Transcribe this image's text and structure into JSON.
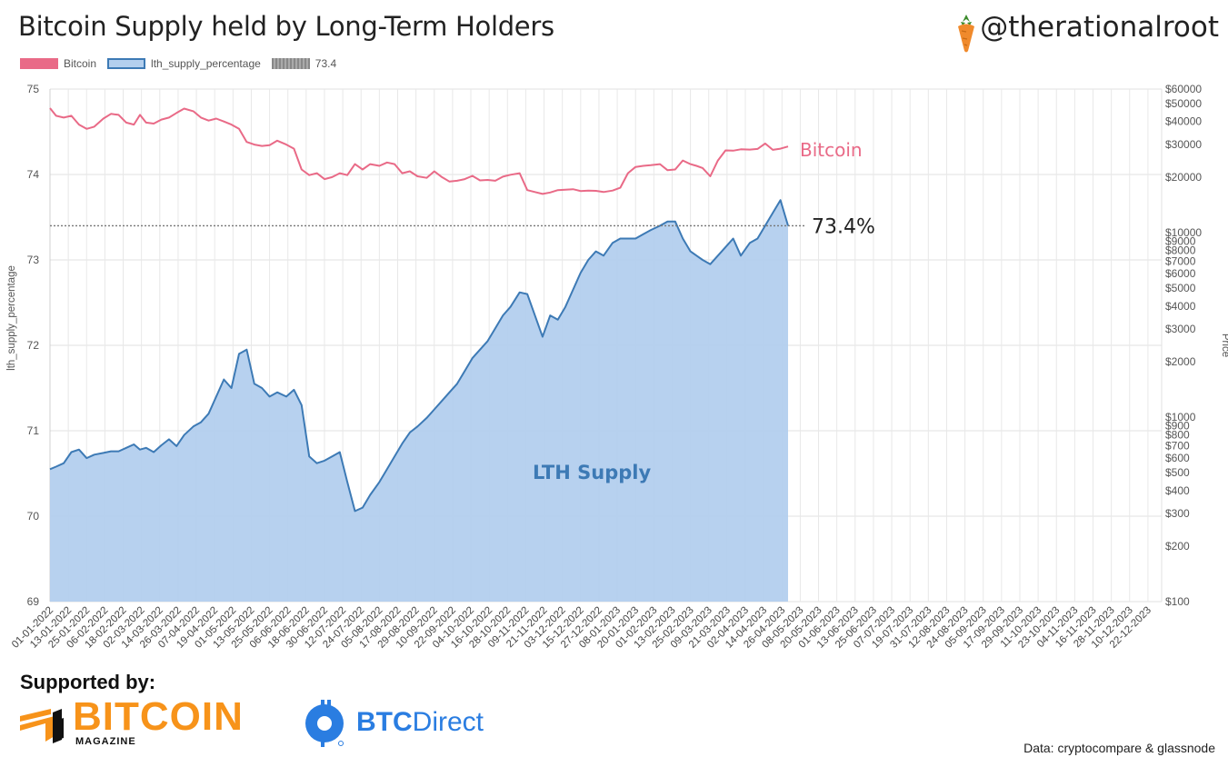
{
  "header": {
    "title": "Bitcoin Supply held by Long-Term Holders",
    "handle": "@therationalroot"
  },
  "legend": [
    {
      "label": "Bitcoin",
      "color": "#e96a87"
    },
    {
      "label": "lth_supply_percentage",
      "color": "#3d7ab5"
    },
    {
      "label": "73.4",
      "color": "#888888"
    }
  ],
  "footer": {
    "supported_by": "Supported by:",
    "sponsor1_name": "BITCOIN",
    "sponsor1_sub": "MAGAZINE",
    "sponsor2_name_a": "BTC",
    "sponsor2_name_b": "Direct",
    "source": "Data: cryptocompare & glassnode"
  },
  "chart_data": {
    "type": "line",
    "title": "Bitcoin Supply held by Long-Term Holders",
    "y_left_label": "lth_supply_percentage",
    "y_left_range": [
      69,
      75
    ],
    "y_left_ticks": [
      "69",
      "70",
      "71",
      "72",
      "73",
      "74",
      "75"
    ],
    "y_right_label": "Price",
    "y_right_scale": "log",
    "y_right_range": [
      100,
      60000
    ],
    "y_right_ticks": [
      {
        "v": 100,
        "label": "$100"
      },
      {
        "v": 200,
        "label": "$200"
      },
      {
        "v": 300,
        "label": "$300"
      },
      {
        "v": 400,
        "label": "$400"
      },
      {
        "v": 500,
        "label": "$500"
      },
      {
        "v": 600,
        "label": "$600"
      },
      {
        "v": 700,
        "label": "$700"
      },
      {
        "v": 800,
        "label": "$800"
      },
      {
        "v": 900,
        "label": "$900"
      },
      {
        "v": 1000,
        "label": "$1000"
      },
      {
        "v": 2000,
        "label": "$2000"
      },
      {
        "v": 3000,
        "label": "$3000"
      },
      {
        "v": 4000,
        "label": "$4000"
      },
      {
        "v": 5000,
        "label": "$5000"
      },
      {
        "v": 6000,
        "label": "$6000"
      },
      {
        "v": 7000,
        "label": "$7000"
      },
      {
        "v": 8000,
        "label": "$8000"
      },
      {
        "v": 9000,
        "label": "$9000"
      },
      {
        "v": 10000,
        "label": "$10000"
      },
      {
        "v": 20000,
        "label": "$20000"
      },
      {
        "v": 30000,
        "label": "$30000"
      },
      {
        "v": 40000,
        "label": "$40000"
      },
      {
        "v": 50000,
        "label": "$50000"
      },
      {
        "v": 60000,
        "label": "$60000"
      }
    ],
    "x_range": [
      "2022-01-01",
      "2023-12-31"
    ],
    "x_tick_labels": [
      "01-01-2022",
      "13-01-2022",
      "25-01-2022",
      "06-02-2022",
      "18-02-2022",
      "02-03-2022",
      "14-03-2022",
      "26-03-2022",
      "07-04-2022",
      "19-04-2022",
      "01-05-2022",
      "13-05-2022",
      "25-05-2022",
      "06-06-2022",
      "18-06-2022",
      "30-06-2022",
      "12-07-2022",
      "24-07-2022",
      "05-08-2022",
      "17-08-2022",
      "29-08-2022",
      "10-09-2022",
      "22-09-2022",
      "04-10-2022",
      "16-10-2022",
      "28-10-2022",
      "09-11-2022",
      "21-11-2022",
      "03-12-2022",
      "15-12-2022",
      "27-12-2022",
      "08-01-2023",
      "20-01-2023",
      "01-02-2023",
      "13-02-2023",
      "25-02-2023",
      "09-03-2023",
      "21-03-2023",
      "02-04-2023",
      "14-04-2023",
      "26-04-2023",
      "08-05-2023",
      "20-05-2023",
      "01-06-2023",
      "13-06-2023",
      "25-06-2023",
      "07-07-2023",
      "19-07-2023",
      "31-07-2023",
      "12-08-2023",
      "24-08-2023",
      "05-09-2023",
      "17-09-2023",
      "29-09-2023",
      "11-10-2023",
      "23-10-2023",
      "04-11-2023",
      "16-11-2023",
      "28-11-2023",
      "10-12-2023",
      "22-12-2023"
    ],
    "grid": true,
    "reference_line": {
      "value": 73.4,
      "label": "73.4%"
    },
    "series": [
      {
        "name": "lth_supply_percentage",
        "axis": "left",
        "type": "area",
        "annotation": "LTH Supply",
        "color": "#3d7ab5",
        "fill": "#b3cfee",
        "x": [
          "2022-01-01",
          "2022-01-05",
          "2022-01-10",
          "2022-01-15",
          "2022-01-20",
          "2022-01-25",
          "2022-01-30",
          "2022-02-05",
          "2022-02-10",
          "2022-02-15",
          "2022-02-20",
          "2022-02-25",
          "2022-03-01",
          "2022-03-05",
          "2022-03-10",
          "2022-03-15",
          "2022-03-20",
          "2022-03-25",
          "2022-03-30",
          "2022-04-05",
          "2022-04-10",
          "2022-04-15",
          "2022-04-20",
          "2022-04-25",
          "2022-04-30",
          "2022-05-05",
          "2022-05-10",
          "2022-05-15",
          "2022-05-20",
          "2022-05-25",
          "2022-05-30",
          "2022-06-05",
          "2022-06-10",
          "2022-06-15",
          "2022-06-20",
          "2022-06-25",
          "2022-06-30",
          "2022-07-05",
          "2022-07-10",
          "2022-07-15",
          "2022-07-20",
          "2022-07-25",
          "2022-07-30",
          "2022-08-05",
          "2022-08-10",
          "2022-08-15",
          "2022-08-20",
          "2022-08-25",
          "2022-08-30",
          "2022-09-05",
          "2022-09-10",
          "2022-09-15",
          "2022-09-20",
          "2022-09-25",
          "2022-09-30",
          "2022-10-05",
          "2022-10-10",
          "2022-10-15",
          "2022-10-20",
          "2022-10-25",
          "2022-10-30",
          "2022-11-05",
          "2022-11-10",
          "2022-11-15",
          "2022-11-20",
          "2022-11-25",
          "2022-11-30",
          "2022-12-05",
          "2022-12-10",
          "2022-12-15",
          "2022-12-20",
          "2022-12-25",
          "2022-12-30",
          "2023-01-05",
          "2023-01-10",
          "2023-01-15",
          "2023-01-20",
          "2023-01-25",
          "2023-01-30",
          "2023-02-05",
          "2023-02-10",
          "2023-02-15",
          "2023-02-20",
          "2023-02-25",
          "2023-03-01",
          "2023-03-05",
          "2023-03-10",
          "2023-03-15",
          "2023-03-20",
          "2023-03-25",
          "2023-03-30",
          "2023-04-05",
          "2023-04-10",
          "2023-04-15",
          "2023-04-20",
          "2023-04-25",
          "2023-04-30"
        ],
        "values": [
          70.55,
          70.58,
          70.62,
          70.75,
          70.78,
          70.68,
          70.72,
          70.74,
          70.76,
          70.76,
          70.8,
          70.84,
          70.78,
          70.8,
          70.75,
          70.83,
          70.9,
          70.82,
          70.95,
          71.05,
          71.1,
          71.2,
          71.4,
          71.6,
          71.5,
          71.9,
          71.95,
          71.55,
          71.5,
          71.4,
          71.45,
          71.4,
          71.48,
          71.3,
          70.7,
          70.62,
          70.65,
          70.7,
          70.75,
          70.4,
          70.06,
          70.1,
          70.25,
          70.4,
          70.55,
          70.7,
          70.85,
          70.98,
          71.05,
          71.15,
          71.25,
          71.35,
          71.45,
          71.55,
          71.7,
          71.85,
          71.95,
          72.05,
          72.2,
          72.35,
          72.45,
          72.62,
          72.6,
          72.35,
          72.1,
          72.35,
          72.3,
          72.45,
          72.65,
          72.85,
          73.0,
          73.1,
          73.05,
          73.2,
          73.25,
          73.25,
          73.25,
          73.3,
          73.35,
          73.4,
          73.45,
          73.45,
          73.25,
          73.1,
          73.05,
          73.0,
          72.95,
          73.05,
          73.15,
          73.25,
          73.05,
          73.2,
          73.25,
          73.4,
          73.55,
          73.7,
          73.4
        ]
      },
      {
        "name": "Bitcoin",
        "axis": "right",
        "type": "line",
        "annotation": "Bitcoin",
        "color": "#e96a87",
        "x": [
          "2022-01-01",
          "2022-01-05",
          "2022-01-10",
          "2022-01-15",
          "2022-01-20",
          "2022-01-25",
          "2022-01-30",
          "2022-02-05",
          "2022-02-10",
          "2022-02-15",
          "2022-02-20",
          "2022-02-25",
          "2022-03-01",
          "2022-03-05",
          "2022-03-10",
          "2022-03-15",
          "2022-03-20",
          "2022-03-25",
          "2022-03-30",
          "2022-04-05",
          "2022-04-10",
          "2022-04-15",
          "2022-04-20",
          "2022-04-25",
          "2022-04-30",
          "2022-05-05",
          "2022-05-10",
          "2022-05-15",
          "2022-05-20",
          "2022-05-25",
          "2022-05-30",
          "2022-06-05",
          "2022-06-10",
          "2022-06-15",
          "2022-06-20",
          "2022-06-25",
          "2022-06-30",
          "2022-07-05",
          "2022-07-10",
          "2022-07-15",
          "2022-07-20",
          "2022-07-25",
          "2022-07-30",
          "2022-08-05",
          "2022-08-10",
          "2022-08-15",
          "2022-08-20",
          "2022-08-25",
          "2022-08-30",
          "2022-09-05",
          "2022-09-10",
          "2022-09-15",
          "2022-09-20",
          "2022-09-25",
          "2022-09-30",
          "2022-10-05",
          "2022-10-10",
          "2022-10-15",
          "2022-10-20",
          "2022-10-25",
          "2022-10-30",
          "2022-11-05",
          "2022-11-10",
          "2022-11-15",
          "2022-11-20",
          "2022-11-25",
          "2022-11-30",
          "2022-12-05",
          "2022-12-10",
          "2022-12-15",
          "2022-12-20",
          "2022-12-25",
          "2022-12-30",
          "2023-01-05",
          "2023-01-10",
          "2023-01-15",
          "2023-01-20",
          "2023-01-25",
          "2023-01-30",
          "2023-02-05",
          "2023-02-10",
          "2023-02-15",
          "2023-02-20",
          "2023-02-25",
          "2023-03-01",
          "2023-03-05",
          "2023-03-10",
          "2023-03-15",
          "2023-03-20",
          "2023-03-25",
          "2023-03-30",
          "2023-04-05",
          "2023-04-10",
          "2023-04-15",
          "2023-04-20",
          "2023-04-25",
          "2023-04-30"
        ],
        "values": [
          47300,
          43000,
          42000,
          43000,
          38500,
          36500,
          37500,
          41500,
          44000,
          43500,
          39500,
          38500,
          43500,
          39500,
          39000,
          41000,
          42000,
          44500,
          47000,
          45500,
          42000,
          40500,
          41500,
          40000,
          38500,
          36500,
          31000,
          30000,
          29500,
          29800,
          31500,
          30000,
          28500,
          22000,
          20500,
          21000,
          19500,
          20000,
          21000,
          20500,
          23500,
          22000,
          23500,
          23000,
          24000,
          23500,
          21000,
          21500,
          20200,
          19800,
          21500,
          20000,
          18900,
          19100,
          19500,
          20300,
          19200,
          19300,
          19100,
          20100,
          20600,
          21000,
          17000,
          16600,
          16200,
          16500,
          17000,
          17100,
          17200,
          16800,
          16900,
          16850,
          16600,
          16900,
          17500,
          21000,
          22700,
          23000,
          23200,
          23500,
          21800,
          22000,
          24600,
          23500,
          23000,
          22400,
          20200,
          24600,
          27900,
          27800,
          28300,
          28200,
          28400,
          30400,
          28100,
          28500,
          29300
        ]
      }
    ]
  }
}
